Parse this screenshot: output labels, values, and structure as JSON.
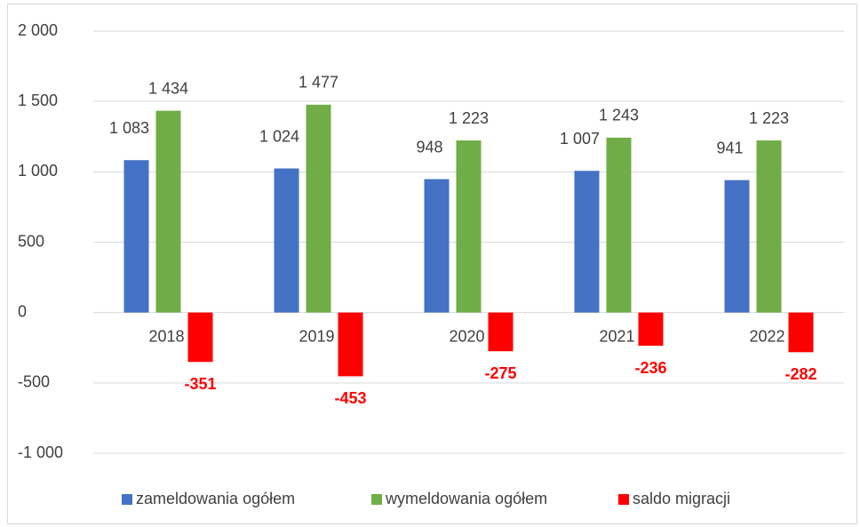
{
  "chart_data": {
    "type": "bar",
    "categories": [
      "2018",
      "2019",
      "2020",
      "2021",
      "2022"
    ],
    "series": [
      {
        "name": "zameldowania ogółem",
        "color": "#4472c4",
        "values": [
          1083,
          1024,
          948,
          1007,
          941
        ],
        "value_labels": [
          "1 083",
          "1 024",
          "948",
          "1 007",
          "941"
        ]
      },
      {
        "name": "wymeldowania ogółem",
        "color": "#70ad47",
        "values": [
          1434,
          1477,
          1223,
          1243,
          1223
        ],
        "value_labels": [
          "1 434",
          "1 477",
          "1 223",
          "1 243",
          "1 223"
        ]
      },
      {
        "name": "saldo migracji",
        "color": "#ff0000",
        "values": [
          -351,
          -453,
          -275,
          -236,
          -282
        ]
      }
    ],
    "ylim": [
      -1000,
      2000
    ],
    "yticks": [
      {
        "value": 2000,
        "label": "2 000"
      },
      {
        "value": 1500,
        "label": "1 500"
      },
      {
        "value": 1000,
        "label": "1 000"
      },
      500,
      0,
      -500,
      {
        "value": -1000,
        "label": "-1 000"
      }
    ],
    "grid": true,
    "legend": "bottom"
  }
}
